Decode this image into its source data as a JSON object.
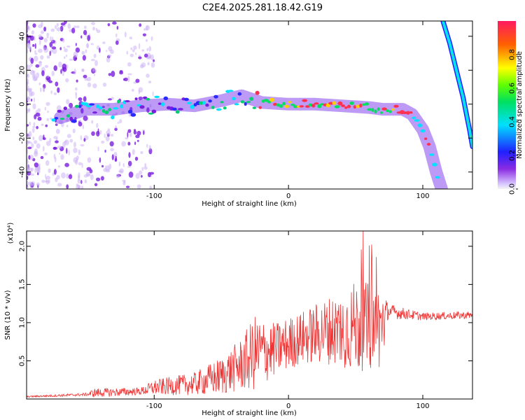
{
  "title": "C2E4.2025.281.18.42.G19",
  "chart_data": [
    {
      "type": "heatmap",
      "title": "C2E4.2025.281.18.42.G19",
      "xlabel": "Height of straight line (km)",
      "ylabel": "Frequency (Hz)",
      "xlim": [
        -195,
        137
      ],
      "ylim": [
        -50,
        49
      ],
      "xticks": [
        -100,
        0,
        100
      ],
      "yticks": [
        -40,
        -20,
        0,
        20,
        40
      ],
      "colorbar": {
        "label": "Normalized spectral amplitude",
        "range": [
          0,
          1
        ],
        "ticks": [
          0.0,
          0.2,
          0.4,
          0.6,
          0.8
        ],
        "tick_labels": [
          "0.0",
          "0.2",
          "0.4",
          "0.6",
          "0.8"
        ]
      },
      "main_track": [
        {
          "x": -170,
          "y": -8
        },
        {
          "x": -150,
          "y": -3
        },
        {
          "x": -130,
          "y": -3
        },
        {
          "x": -110,
          "y": -1
        },
        {
          "x": -90,
          "y": 0
        },
        {
          "x": -70,
          "y": -1
        },
        {
          "x": -50,
          "y": 2
        },
        {
          "x": -35,
          "y": 5
        },
        {
          "x": -20,
          "y": 1
        },
        {
          "x": 0,
          "y": 0
        },
        {
          "x": 20,
          "y": 0
        },
        {
          "x": 40,
          "y": -1
        },
        {
          "x": 60,
          "y": -2
        },
        {
          "x": 70,
          "y": -3
        },
        {
          "x": 85,
          "y": -3
        },
        {
          "x": 92,
          "y": -6
        },
        {
          "x": 100,
          "y": -15
        },
        {
          "x": 105,
          "y": -25
        },
        {
          "x": 110,
          "y": -40
        },
        {
          "x": 114,
          "y": -50
        }
      ],
      "secondary_track": [
        {
          "x": 115,
          "y": 49
        },
        {
          "x": 120,
          "y": 36
        },
        {
          "x": 125,
          "y": 20
        },
        {
          "x": 130,
          "y": 4
        },
        {
          "x": 135,
          "y": -16
        },
        {
          "x": 137,
          "y": -25
        }
      ]
    },
    {
      "type": "line",
      "xlabel": "Height of straight line (km)",
      "ylabel": "SNR (10 * v/v)",
      "y_multiplier": "(x10⁴)",
      "xlim": [
        -195,
        137
      ],
      "ylim": [
        0,
        2.2
      ],
      "xticks": [
        -100,
        0,
        100
      ],
      "yticks": [
        0.5,
        1.0,
        1.5,
        2.0
      ],
      "ytick_labels": [
        "0.5",
        "1.0",
        "1.5",
        "2.0"
      ],
      "series": [
        {
          "name": "SNR",
          "color": "#ee3333",
          "envelope": [
            {
              "x": -195,
              "mean": 0.03,
              "amp": 0.01
            },
            {
              "x": -150,
              "mean": 0.06,
              "amp": 0.02
            },
            {
              "x": -145,
              "mean": 0.08,
              "amp": 0.06
            },
            {
              "x": -110,
              "mean": 0.1,
              "amp": 0.05
            },
            {
              "x": -100,
              "mean": 0.15,
              "amp": 0.1
            },
            {
              "x": -70,
              "mean": 0.2,
              "amp": 0.15
            },
            {
              "x": -50,
              "mean": 0.3,
              "amp": 0.25
            },
            {
              "x": -35,
              "mean": 0.45,
              "amp": 0.35
            },
            {
              "x": -25,
              "mean": 0.6,
              "amp": 0.5
            },
            {
              "x": -10,
              "mean": 0.65,
              "amp": 0.35
            },
            {
              "x": 10,
              "mean": 0.8,
              "amp": 0.35
            },
            {
              "x": 30,
              "mean": 0.9,
              "amp": 0.45
            },
            {
              "x": 50,
              "mean": 0.95,
              "amp": 0.6
            },
            {
              "x": 70,
              "mean": 0.95,
              "amp": 0.55
            },
            {
              "x": 74,
              "mean": 1.15,
              "amp": 0.1
            },
            {
              "x": 100,
              "mean": 1.08,
              "amp": 0.05
            },
            {
              "x": 137,
              "mean": 1.1,
              "amp": 0.05
            }
          ]
        }
      ]
    }
  ]
}
